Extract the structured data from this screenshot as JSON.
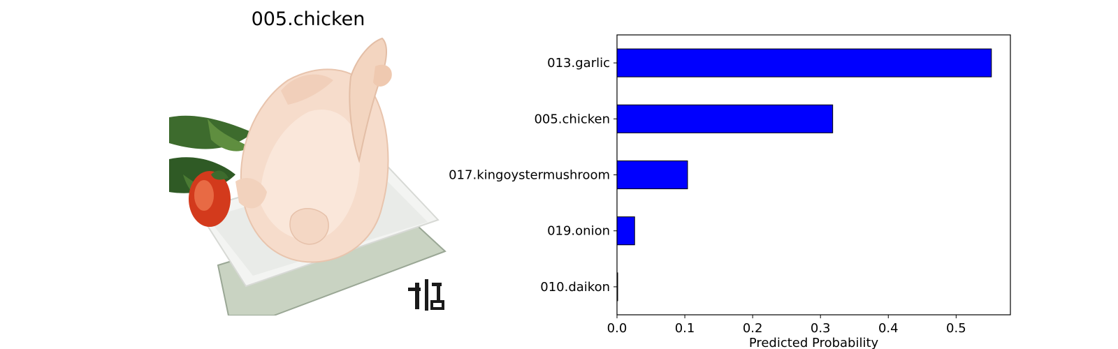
{
  "image_panel": {
    "title": "005.chicken",
    "watermark_text": "유기농"
  },
  "chart_data": {
    "type": "bar",
    "orientation": "horizontal",
    "categories": [
      "013.garlic",
      "005.chicken",
      "017.kingoystermushroom",
      "019.onion",
      "010.daikon"
    ],
    "values": [
      0.552,
      0.318,
      0.104,
      0.026,
      0.001
    ],
    "xlabel": "Predicted Probability",
    "ylabel": "",
    "xlim": [
      0,
      0.58
    ],
    "xticks": [
      "0.0",
      "0.1",
      "0.2",
      "0.3",
      "0.4",
      "0.5"
    ],
    "bar_color": "#0000ff",
    "edge_color": "#000000",
    "grid": false
  }
}
